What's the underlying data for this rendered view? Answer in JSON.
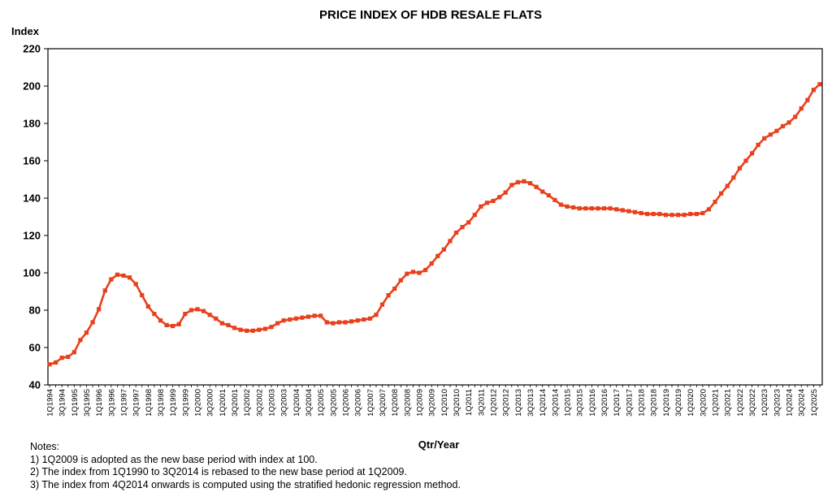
{
  "chart_data": {
    "type": "line",
    "title": "PRICE INDEX OF HDB RESALE FLATS",
    "ylabel": "Index",
    "xlabel": "Qtr/Year",
    "ylim": [
      40,
      220
    ],
    "yticks": [
      40,
      60,
      80,
      100,
      120,
      140,
      160,
      180,
      200,
      220
    ],
    "xtick_labels": [
      "1Q1994",
      "3Q1994",
      "1Q1995",
      "3Q1995",
      "1Q1996",
      "3Q1996",
      "1Q1997",
      "3Q1997",
      "1Q1998",
      "3Q1998",
      "1Q1999",
      "3Q1999",
      "1Q2000",
      "3Q2000",
      "1Q2001",
      "3Q2001",
      "1Q2002",
      "3Q2002",
      "1Q2003",
      "3Q2003",
      "1Q2004",
      "3Q2004",
      "1Q2005",
      "3Q2005",
      "1Q2006",
      "3Q2006",
      "1Q2007",
      "3Q2007",
      "1Q2008",
      "3Q2008",
      "1Q2009",
      "3Q2009",
      "1Q2010",
      "3Q2010",
      "1Q2011",
      "3Q2011",
      "1Q2012",
      "3Q2012",
      "1Q2013",
      "3Q2013",
      "1Q2014",
      "3Q2014",
      "1Q2015",
      "3Q2015",
      "1Q2016",
      "3Q2016",
      "1Q2017",
      "3Q2017",
      "1Q2018",
      "3Q2018",
      "1Q2019",
      "3Q2019",
      "1Q2020",
      "3Q2020",
      "1Q2021",
      "3Q2021",
      "1Q2022",
      "3Q2022",
      "1Q2023",
      "3Q2023",
      "1Q2024",
      "3Q2024",
      "1Q2025"
    ],
    "series": [
      {
        "name": "Price Index",
        "color": "#E8401C",
        "values": [
          51.0,
          52.0,
          54.5,
          55.0,
          57.5,
          64.0,
          68.0,
          73.5,
          80.5,
          90.5,
          96.5,
          99.0,
          98.5,
          97.5,
          94.0,
          88.0,
          82.0,
          78.0,
          74.5,
          72.0,
          71.5,
          72.5,
          78.0,
          80.0,
          80.5,
          79.5,
          77.5,
          75.5,
          73.0,
          72.0,
          70.5,
          69.5,
          69.0,
          69.0,
          69.5,
          70.0,
          71.0,
          73.0,
          74.5,
          75.0,
          75.5,
          76.0,
          76.5,
          77.0,
          77.0,
          73.5,
          73.0,
          73.5,
          73.5,
          74.0,
          74.5,
          75.0,
          75.5,
          77.5,
          83.0,
          88.0,
          91.5,
          96.0,
          99.5,
          100.5,
          100.0,
          101.5,
          105.0,
          109.0,
          112.5,
          117.0,
          121.5,
          124.5,
          127.0,
          131.0,
          135.5,
          137.5,
          138.5,
          140.5,
          143.0,
          147.0,
          148.5,
          149.0,
          148.0,
          146.0,
          143.5,
          141.5,
          139.0,
          136.5,
          135.5,
          135.0,
          134.5,
          134.5,
          134.5,
          134.5,
          134.5,
          134.5,
          134.0,
          133.5,
          133.0,
          132.5,
          132.0,
          131.5,
          131.5,
          131.5,
          131.0,
          131.0,
          131.0,
          131.0,
          131.5,
          131.5,
          132.0,
          134.0,
          138.0,
          142.5,
          146.5,
          151.0,
          156.0,
          160.0,
          164.0,
          168.5,
          172.0,
          174.0,
          176.0,
          178.5,
          180.5,
          183.5,
          188.0,
          192.5,
          198.0,
          201.0
        ]
      }
    ]
  },
  "notes": {
    "heading": "Notes:",
    "items": [
      "1) 1Q2009 is adopted as the new base period with index at 100.",
      "2) The index from 1Q1990 to 3Q2014 is rebased to the new base period at 1Q2009.",
      "3) The index from 4Q2014 onwards is computed using the stratified hedonic regression method."
    ]
  }
}
